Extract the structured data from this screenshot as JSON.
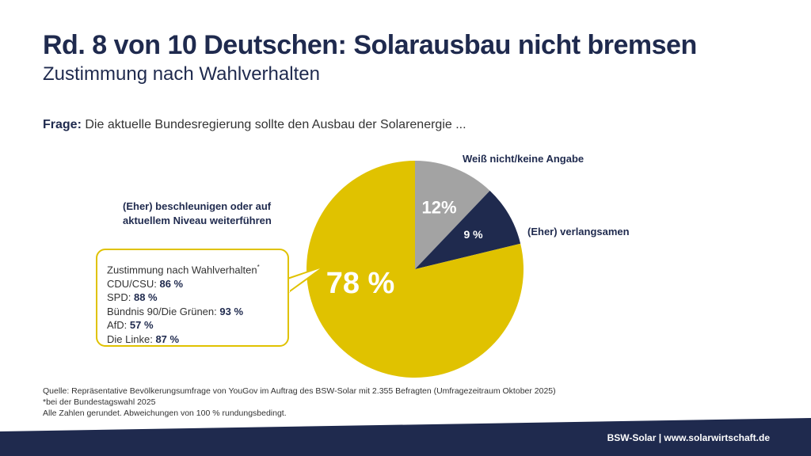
{
  "title": "Rd. 8 von 10 Deutschen: Solarausbau nicht bremsen",
  "subtitle": "Zustimmung nach Wahlverhalten",
  "question": {
    "label": "Frage:",
    "text": "Die aktuelle Bundesregierung sollte den Ausbau der Solarenergie ..."
  },
  "chart_data": {
    "type": "pie",
    "slices": [
      {
        "name": "Weiß nicht/keine Angabe",
        "value": 12,
        "label": "12%",
        "color": "#a3a3a3"
      },
      {
        "name": "(Eher) verlangsamen",
        "value": 9,
        "label": "9 %",
        "color": "#1f2a4e"
      },
      {
        "name": "(Eher) beschleunigen oder auf aktuellem Niveau weiterführen",
        "value": 78,
        "label": "78 %",
        "color": "#e0c200"
      }
    ],
    "start": "top",
    "direction": "clockwise"
  },
  "slice_names": {
    "dontknow": "Weiß nicht/keine Angabe",
    "slower": "(Eher) verlangsamen",
    "faster_1": "(Eher) beschleunigen oder auf",
    "faster_2": "aktuellem Niveau weiterführen"
  },
  "callout": {
    "heading": "Zustimmung nach Wahlverhalten",
    "footnote_mark": "*",
    "rows": [
      {
        "party": "CDU/CSU:",
        "value": "86 %"
      },
      {
        "party": "SPD:",
        "value": "88 %"
      },
      {
        "party": "Bündnis 90/Die Grünen:",
        "value": "93 %"
      },
      {
        "party": "AfD:",
        "value": "57 %"
      },
      {
        "party": "Die Linke:",
        "value": "87 %"
      }
    ]
  },
  "source": {
    "line1": "Quelle: Repräsentative Bevölkerungsumfrage von YouGov im Auftrag des BSW-Solar mit 2.355 Befragten (Umfragezeitraum Oktober 2025)",
    "line2": "*bei der Bundestagswahl 2025",
    "line3": "Alle Zahlen gerundet. Abweichungen von 100 % rundungsbedingt."
  },
  "footer": "BSW-Solar | www.solarwirtschaft.de",
  "colors": {
    "navy": "#1f2a4e",
    "yellow": "#e0c200",
    "gray": "#a3a3a3"
  }
}
